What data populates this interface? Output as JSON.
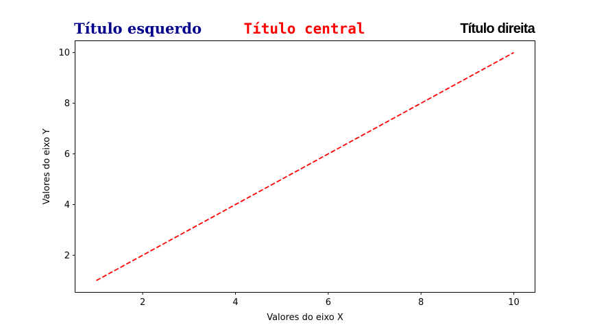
{
  "chart_data": {
    "type": "line",
    "titles": {
      "left": "Título esquerdo",
      "center": "Título central",
      "right": "Título direita"
    },
    "xlabel": "Valores do eixo X",
    "ylabel": "Valores do eixo Y",
    "xlim": [
      0.55,
      10.45
    ],
    "ylim": [
      0.55,
      10.45
    ],
    "xticks": [
      2,
      4,
      6,
      8,
      10
    ],
    "yticks": [
      2,
      4,
      6,
      8,
      10
    ],
    "grid": false,
    "series": [
      {
        "x": [
          1,
          2,
          3,
          4,
          5,
          6,
          7,
          8,
          9,
          10
        ],
        "y": [
          1,
          2,
          3,
          4,
          5,
          6,
          7,
          8,
          9,
          10
        ],
        "color": "#ff0000",
        "linestyle": "dashed"
      }
    ],
    "title_colors": {
      "left": "#00008b",
      "center": "#ff0000",
      "right": "#000000"
    }
  }
}
